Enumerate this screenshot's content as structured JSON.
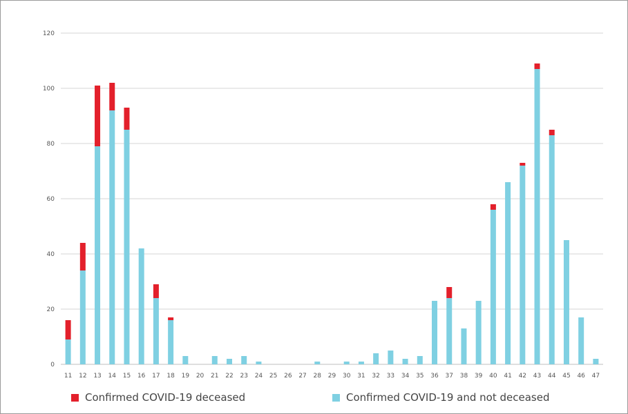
{
  "chart_data": {
    "type": "bar",
    "stacked": true,
    "title": "",
    "xlabel": "",
    "ylabel": "",
    "ylim": [
      0,
      120
    ],
    "yticks": [
      0,
      20,
      40,
      60,
      80,
      100,
      120
    ],
    "grid": true,
    "legend_position": "bottom",
    "categories": [
      "11",
      "12",
      "13",
      "14",
      "15",
      "16",
      "17",
      "18",
      "19",
      "20",
      "21",
      "22",
      "23",
      "24",
      "25",
      "26",
      "27",
      "28",
      "29",
      "30",
      "31",
      "32",
      "33",
      "34",
      "35",
      "36",
      "37",
      "38",
      "39",
      "40",
      "41",
      "42",
      "43",
      "44",
      "45",
      "46",
      "47"
    ],
    "series": [
      {
        "name": "Confirmed COVID-19 and not deceased",
        "color": "#7fd0e2",
        "values": [
          9,
          34,
          79,
          92,
          85,
          42,
          24,
          16,
          3,
          0,
          3,
          2,
          3,
          1,
          0,
          0,
          0,
          1,
          0,
          1,
          1,
          4,
          5,
          2,
          3,
          23,
          24,
          13,
          23,
          56,
          66,
          72,
          107,
          83,
          45,
          17,
          2
        ]
      },
      {
        "name": "Confirmed COVID-19 deceased",
        "color": "#e3202b",
        "values": [
          7,
          10,
          22,
          10,
          8,
          0,
          5,
          1,
          0,
          0,
          0,
          0,
          0,
          0,
          0,
          0,
          0,
          0,
          0,
          0,
          0,
          0,
          0,
          0,
          0,
          0,
          4,
          0,
          0,
          2,
          0,
          1,
          2,
          2,
          0,
          0,
          0
        ]
      }
    ]
  },
  "legend": {
    "deceased_label": "Confirmed COVID-19 deceased",
    "not_deceased_label": "Confirmed COVID-19 and not deceased"
  }
}
